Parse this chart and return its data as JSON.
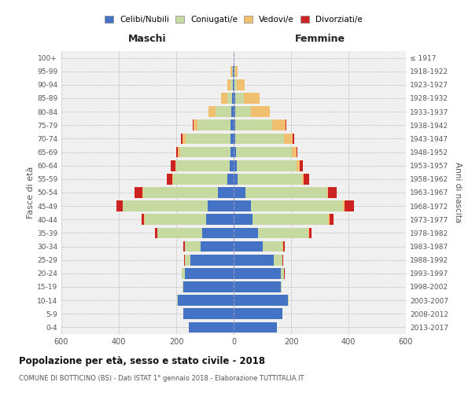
{
  "age_groups": [
    "0-4",
    "5-9",
    "10-14",
    "15-19",
    "20-24",
    "25-29",
    "30-34",
    "35-39",
    "40-44",
    "45-49",
    "50-54",
    "55-59",
    "60-64",
    "65-69",
    "70-74",
    "75-79",
    "80-84",
    "85-89",
    "90-94",
    "95-99",
    "100+"
  ],
  "birth_years": [
    "2013-2017",
    "2008-2012",
    "2003-2007",
    "1998-2002",
    "1993-1997",
    "1988-1992",
    "1983-1987",
    "1978-1982",
    "1973-1977",
    "1968-1972",
    "1963-1967",
    "1958-1962",
    "1953-1957",
    "1948-1952",
    "1943-1947",
    "1938-1942",
    "1933-1937",
    "1928-1932",
    "1923-1927",
    "1918-1922",
    "≤ 1917"
  ],
  "colors": {
    "celibe": "#4472C4",
    "coniugato": "#C5D9A0",
    "vedovo": "#F0C070",
    "divorziato": "#CC2222"
  },
  "males": {
    "celibe": [
      155,
      175,
      195,
      175,
      170,
      150,
      115,
      110,
      95,
      90,
      55,
      22,
      14,
      12,
      12,
      10,
      8,
      5,
      3,
      2,
      0
    ],
    "coniugato": [
      0,
      0,
      2,
      2,
      10,
      20,
      55,
      155,
      215,
      295,
      260,
      190,
      185,
      175,
      155,
      115,
      55,
      18,
      8,
      3,
      0
    ],
    "vedovo": [
      0,
      0,
      0,
      0,
      1,
      1,
      1,
      1,
      1,
      2,
      3,
      3,
      5,
      8,
      12,
      15,
      25,
      20,
      12,
      5,
      0
    ],
    "divorziato": [
      0,
      0,
      0,
      0,
      1,
      2,
      5,
      8,
      10,
      22,
      28,
      18,
      15,
      5,
      5,
      3,
      1,
      1,
      0,
      0,
      0
    ]
  },
  "females": {
    "nubile": [
      150,
      170,
      190,
      165,
      165,
      140,
      100,
      85,
      65,
      60,
      40,
      14,
      10,
      8,
      6,
      5,
      5,
      5,
      3,
      2,
      0
    ],
    "coniugata": [
      0,
      0,
      2,
      3,
      10,
      30,
      70,
      175,
      265,
      320,
      285,
      225,
      210,
      195,
      170,
      130,
      55,
      30,
      8,
      3,
      0
    ],
    "vedova": [
      0,
      0,
      0,
      0,
      1,
      1,
      2,
      2,
      3,
      5,
      5,
      5,
      10,
      15,
      30,
      45,
      65,
      55,
      28,
      8,
      1
    ],
    "divorziata": [
      0,
      0,
      0,
      0,
      1,
      2,
      5,
      8,
      15,
      35,
      30,
      20,
      10,
      5,
      5,
      3,
      1,
      1,
      0,
      0,
      0
    ]
  },
  "xlim": 600,
  "title": "Popolazione per età, sesso e stato civile - 2018",
  "subtitle": "COMUNE DI BOTTICINO (BS) - Dati ISTAT 1° gennaio 2018 - Elaborazione TUTTITALIA.IT",
  "ylabel_left": "Fasce di età",
  "ylabel_right": "Anni di nascita",
  "xlabel_maschi": "Maschi",
  "xlabel_femmine": "Femmine",
  "legend_labels": [
    "Celibi/Nubili",
    "Coniugati/e",
    "Vedovi/e",
    "Divorziati/e"
  ],
  "background_color": "#FFFFFF",
  "plot_bg_color": "#F0F0F0",
  "grid_color": "#BBBBBB",
  "label_color": "#555555"
}
